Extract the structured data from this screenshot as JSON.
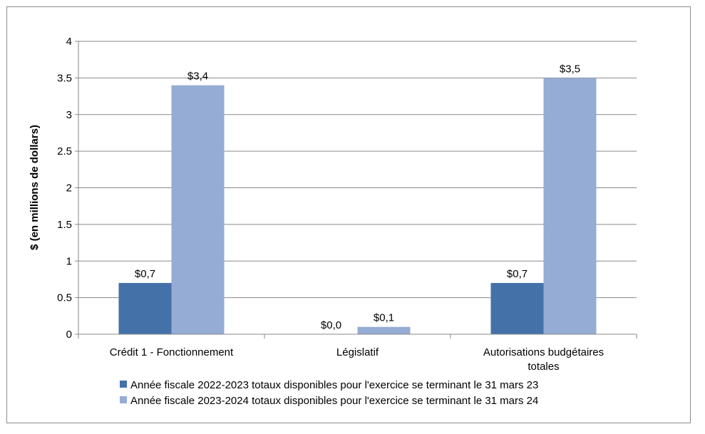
{
  "chart_data": {
    "type": "bar",
    "title": "",
    "xlabel": "",
    "ylabel": "$ (en millions de dollars)",
    "ylim": [
      0,
      4
    ],
    "yticks": [
      "0",
      "0.5",
      "1",
      "1.5",
      "2",
      "2.5",
      "3",
      "3.5",
      "4"
    ],
    "grid": true,
    "legend_position": "bottom",
    "categories": [
      [
        "Crédit 1 - Fonctionnement"
      ],
      [
        "Législatif"
      ],
      [
        "Autorisations budgétaires",
        "totales"
      ]
    ],
    "series": [
      {
        "name": "Année fiscale 2022-2023 totaux disponibles pour l'exercice se terminant le 31 mars 23",
        "color": "#4472a8",
        "values": [
          0.7,
          0,
          0.7
        ],
        "labels": [
          "$0,7",
          "$0,0",
          "$0,7"
        ]
      },
      {
        "name": "Année fiscale 2023-2024 totaux disponibles pour l'exercice se terminant le 31 mars 24",
        "color": "#95acd4",
        "values": [
          3.4,
          0.1,
          3.5
        ],
        "labels": [
          "$3,4",
          "$0,1",
          "$3,5"
        ]
      }
    ]
  }
}
